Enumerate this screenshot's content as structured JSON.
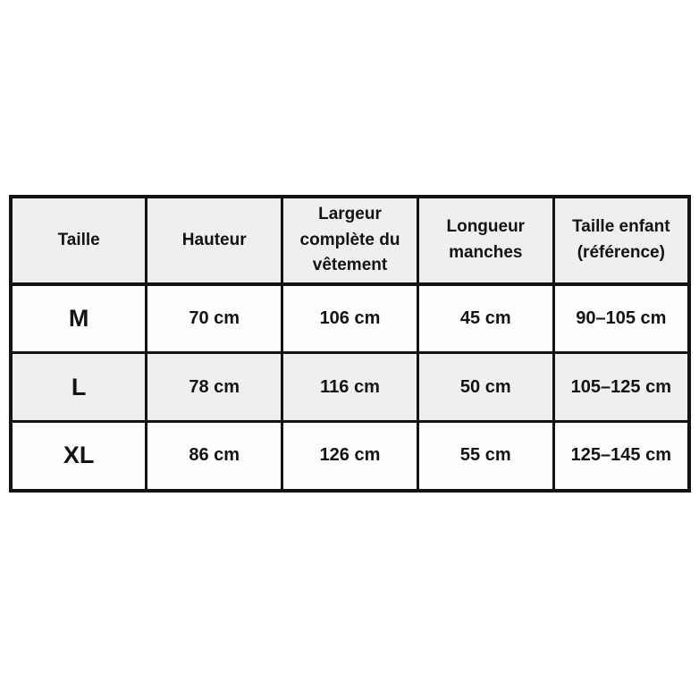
{
  "table": {
    "headers": [
      "Taille",
      "Hauteur",
      "Largeur complète du vêtement",
      "Longueur manches",
      "Taille enfant (référence)"
    ],
    "rows": [
      {
        "cells": [
          "M",
          "70 cm",
          "106 cm",
          "45 cm",
          "90–105 cm"
        ]
      },
      {
        "cells": [
          "L",
          "78 cm",
          "116 cm",
          "50 cm",
          "105–125 cm"
        ]
      },
      {
        "cells": [
          "XL",
          "86 cm",
          "126 cm",
          "55 cm",
          "125–145 cm"
        ]
      }
    ]
  },
  "colors": {
    "border": "#131313",
    "shaded_row_bg": "#f0efee",
    "plain_row_bg": "#fefefe",
    "text": "#131313",
    "page_bg": "#ffffff"
  }
}
